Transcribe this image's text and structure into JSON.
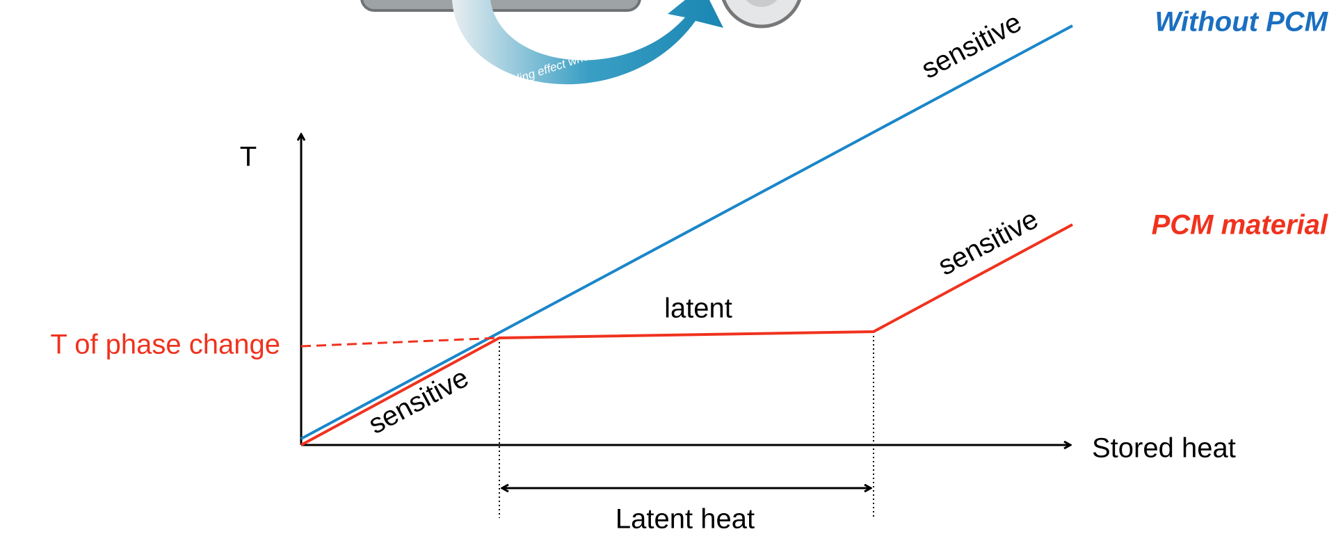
{
  "graphic": {
    "caption": "Cooling effect when body is warm"
  },
  "legend": {
    "without_pcm": "Without PCM",
    "pcm_material": "PCM material"
  },
  "axes": {
    "y_label": "T",
    "x_label": "Stored heat"
  },
  "annotations": {
    "phase_change": "T of phase change",
    "latent": "latent",
    "latent_heat": "Latent heat",
    "sensitive_blue": "sensitive",
    "sensitive_red_high": "sensitive",
    "sensitive_red_low": "sensitive"
  }
}
